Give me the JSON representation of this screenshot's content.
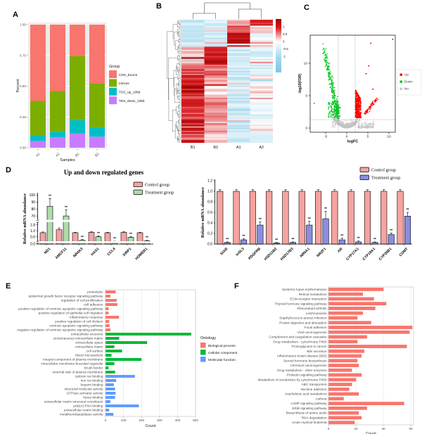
{
  "panels": {
    "A": {
      "label": "A",
      "chart_data": {
        "type": "bar",
        "stacked": true,
        "title": "",
        "xlabel": "Samples",
        "ylabel": "Percent",
        "categories": [
          "A1",
          "A2",
          "B1",
          "B2"
        ],
        "yticks": [
          "1.00",
          "0.75",
          "0.50",
          "0.25",
          "0.00"
        ],
        "legend_title": "Group",
        "series": [
          {
            "name": "CDS_Exons",
            "color": "#F8766D",
            "values": [
              0.62,
              0.54,
              0.255,
              0.48
            ]
          },
          {
            "name": "Introns",
            "color": "#7CAE00",
            "values": [
              0.28,
              0.33,
              0.52,
              0.355
            ]
          },
          {
            "name": "TSS_up_10kb",
            "color": "#00BFC4",
            "values": [
              0.045,
              0.045,
              0.11,
              0.075
            ]
          },
          {
            "name": "TES_down_10kb",
            "color": "#C77CFF",
            "values": [
              0.055,
              0.085,
              0.115,
              0.09
            ]
          }
        ]
      }
    },
    "B": {
      "label": "B",
      "chart_data": {
        "type": "heatmap",
        "columns": [
          "B1",
          "B2",
          "A1",
          "A2"
        ],
        "colorbar_ticks": [
          "1",
          "0.5",
          "0",
          "-0.5",
          "-1"
        ],
        "colors": {
          "high": "#D6191C",
          "veryhigh": "#9E0000",
          "mid": "#FFFFFF",
          "low": "#7EC8E3"
        },
        "row_blocks": [
          {
            "n": 4,
            "means": [
              -0.5,
              -0.45,
              0.55,
              1.15
            ]
          },
          {
            "n": 5,
            "means": [
              -0.5,
              -0.5,
              0.9,
              0.15
            ]
          },
          {
            "n": 5,
            "means": [
              -0.55,
              -0.5,
              1.2,
              -0.2
            ]
          },
          {
            "n": 4,
            "means": [
              -0.5,
              -0.45,
              1.1,
              0.3
            ]
          },
          {
            "n": 6,
            "means": [
              0.3,
              1.1,
              -0.5,
              -0.3
            ]
          },
          {
            "n": 6,
            "means": [
              0.5,
              1.2,
              -0.55,
              -0.25
            ]
          },
          {
            "n": 7,
            "means": [
              0.8,
              0.7,
              -0.5,
              -0.3
            ]
          },
          {
            "n": 6,
            "means": [
              1.15,
              0.4,
              -0.5,
              0.1
            ]
          },
          {
            "n": 7,
            "means": [
              1.2,
              0.1,
              -0.45,
              0.15
            ]
          },
          {
            "n": 8,
            "means": [
              1.0,
              0.55,
              -0.5,
              -0.2
            ]
          },
          {
            "n": 8,
            "means": [
              0.9,
              0.5,
              -0.55,
              -0.1
            ]
          },
          {
            "n": 8,
            "means": [
              1.1,
              0.45,
              -0.5,
              0.05
            ]
          },
          {
            "n": 8,
            "means": [
              0.95,
              0.35,
              -0.5,
              -0.15
            ]
          }
        ],
        "jitter": 0.28,
        "seed": 7
      }
    },
    "C": {
      "label": "C",
      "chart_data": {
        "type": "scatter",
        "xlabel": "logFC",
        "ylabel": "-log10(FDR)",
        "xticks": [
          -5,
          0,
          5,
          10
        ],
        "yticks": [
          0,
          5,
          10
        ],
        "xlim": [
          -8.7,
          11.5
        ],
        "ylim": [
          -0.6,
          14.4
        ],
        "thresholds": {
          "vlines": [
            -2,
            2
          ],
          "hline": 1.3
        },
        "legend": [
          {
            "label": "Up",
            "color": "#FF0000"
          },
          {
            "label": "Down",
            "color": "#00C71E"
          },
          {
            "label": "No",
            "color": "#C4C4C4"
          }
        ],
        "red_outliers": [
          [
            10.9,
            13.7
          ],
          [
            5.7,
            13.1
          ],
          [
            5.2,
            9.6
          ],
          [
            4.6,
            8.4
          ],
          [
            6.2,
            6.0
          ]
        ],
        "green_outliers": [
          [
            -7.7,
            3.8
          ],
          [
            -5.4,
            12.3
          ],
          [
            -5.6,
            11.5
          ],
          [
            -5.0,
            10.4
          ]
        ],
        "seed": 11
      }
    },
    "D": {
      "label": "D",
      "title": "Up and down regulated genes",
      "left": {
        "chart_data": {
          "type": "bar",
          "ylabel": "Relative mRNA abundance",
          "broken_axis": true,
          "categories": [
            "ND1",
            "AMCF11",
            "NR4A3",
            "HAS1",
            "CCL4",
            "XIRP1",
            "HOMER1"
          ],
          "yticks_low": [
            "0.0"
          ],
          "yticks_mid": [
            "0.6",
            "1.2",
            "1.8"
          ],
          "yticks_high": [
            "70",
            "80",
            "90",
            "100"
          ],
          "series": [
            {
              "name": "Control group",
              "color": "#F5A3A0",
              "values": [
                1.0,
                1.3,
                1.0,
                1.05,
                1.0,
                1.05,
                1.0
              ],
              "errors": [
                0.08,
                0.18,
                0.05,
                0.06,
                0.05,
                0.06,
                0.05
              ]
            },
            {
              "name": "Treatment group",
              "color": "#B0DCAB",
              "values": [
                84,
                70,
                0.25,
                0.6,
                0.1,
                0.55,
                0.2
              ],
              "errors": [
                11,
                9,
                0.07,
                0.09,
                0.05,
                0.08,
                0.06
              ],
              "sig": [
                "**",
                "**",
                "**",
                "**",
                "**",
                "**",
                "**"
              ]
            }
          ]
        }
      },
      "right": {
        "chart_data": {
          "type": "bar",
          "ylabel": "Relative mRNA abundance",
          "categories": [
            "StAR",
            "InSL3",
            "PDGFRB",
            "HSD11B2",
            "HSD17B3",
            "NR5A1",
            "NR2F1",
            "AR",
            "CYP17A1",
            "CYP19A1",
            "CYP26B1",
            "COMT"
          ],
          "yticks": [
            "0.0",
            "0.2",
            "0.4",
            "0.6",
            "0.8",
            "1.0",
            "1.2"
          ],
          "series": [
            {
              "name": "Control group",
              "color": "#F5A3A0",
              "values": [
                1,
                1,
                1,
                1,
                1,
                1,
                1,
                1,
                1,
                1,
                1,
                1
              ],
              "errors": [
                0.03,
                0.03,
                0.03,
                0.03,
                0.03,
                0.03,
                0.03,
                0.03,
                0.03,
                0.03,
                0.03,
                0.03
              ]
            },
            {
              "name": "Treatment group",
              "color": "#8C8CE0",
              "values": [
                0.03,
                0.08,
                0.36,
                0.02,
                0.03,
                0.36,
                0.48,
                0.08,
                0.04,
                0.03,
                0.18,
                0.53
              ],
              "errors": [
                0.01,
                0.02,
                0.06,
                0.01,
                0.01,
                0.07,
                0.14,
                0.03,
                0.02,
                0.01,
                0.03,
                0.07
              ],
              "sig": [
                "**",
                "**",
                "**",
                "**",
                "**",
                "**",
                "**",
                "**",
                "**",
                "**",
                "**",
                "**"
              ]
            }
          ]
        }
      }
    },
    "E": {
      "label": "E",
      "chart_data": {
        "type": "bar_h",
        "xlabel": "Count",
        "xticks": [
          0,
          100,
          200,
          300,
          400,
          500
        ],
        "xlim": [
          0,
          500
        ],
        "legend_title": "Ontology",
        "legend": [
          {
            "label": "Biological process",
            "color": "#F8766D"
          },
          {
            "label": "Cellular component",
            "color": "#00BA38"
          },
          {
            "label": "Molecular function",
            "color": "#619CFF"
          }
        ],
        "items": [
          {
            "label": "proteolysis",
            "value": 55,
            "group": 0
          },
          {
            "label": "epidermal growth factor receptor signaling pathway",
            "value": 26,
            "group": 0
          },
          {
            "label": "regulation of cell proliferation",
            "value": 61,
            "group": 0
          },
          {
            "label": "cell adhesion",
            "value": 65,
            "group": 0
          },
          {
            "label": "positive regulation of extrinsic apoptotic signaling pathway",
            "value": 16,
            "group": 0
          },
          {
            "label": "positive regulation of epithelial cell migration",
            "value": 16,
            "group": 0
          },
          {
            "label": "inflammatory response",
            "value": 74,
            "group": 0
          },
          {
            "label": "positive regulation of cell division",
            "value": 19,
            "group": 0
          },
          {
            "label": "extrinsic apoptotic signaling pathway",
            "value": 22,
            "group": 0
          },
          {
            "label": "negative regulation of extrinsic apoptotic signaling pathway",
            "value": 26,
            "group": 0
          },
          {
            "label": "extracellular exosome",
            "value": 475,
            "group": 1
          },
          {
            "label": "proteinaceous extracellular matrix",
            "value": 75,
            "group": 1
          },
          {
            "label": "extracellular space",
            "value": 230,
            "group": 1
          },
          {
            "label": "extracellular matrix",
            "value": 48,
            "group": 1
          },
          {
            "label": "cell surface",
            "value": 91,
            "group": 1
          },
          {
            "label": "blood microparticle",
            "value": 32,
            "group": 1
          },
          {
            "label": "integral component of plasma membrane",
            "value": 199,
            "group": 1
          },
          {
            "label": "intracellular membrane-bounded organelle",
            "value": 48,
            "group": 1
          },
          {
            "label": "brush border",
            "value": 16,
            "group": 1
          },
          {
            "label": "external side of plasma membrane",
            "value": 52,
            "group": 1
          },
          {
            "label": "calcium ion binding",
            "value": 162,
            "group": 2
          },
          {
            "label": "iron ion binding",
            "value": 58,
            "group": 2
          },
          {
            "label": "heparin binding",
            "value": 45,
            "group": 2
          },
          {
            "label": "structural molecule activity",
            "value": 52,
            "group": 2
          },
          {
            "label": "GTPase activator activity",
            "value": 55,
            "group": 2
          },
          {
            "label": "heme binding",
            "value": 52,
            "group": 2
          },
          {
            "label": "extracellular matrix structural constituent",
            "value": 26,
            "group": 2
          },
          {
            "label": "poly(A) RNA binding",
            "value": 184,
            "group": 2
          },
          {
            "label": "extracellular matrix binding",
            "value": 19,
            "group": 2
          },
          {
            "label": "metalloendopeptidase activity",
            "value": 43,
            "group": 2
          }
        ]
      }
    },
    "F": {
      "label": "F",
      "chart_data": {
        "type": "bar_h",
        "xlabel": "Count",
        "xticks": [
          0,
          20,
          40,
          60
        ],
        "xlim": [
          0,
          62
        ],
        "bar_color": "#F8766D",
        "items": [
          {
            "label": "Systemic lupus erythematosus",
            "value": 40
          },
          {
            "label": "Retinol metabolism",
            "value": 25
          },
          {
            "label": "ECM-receptor interaction",
            "value": 33
          },
          {
            "label": "Thyroid hormone signaling pathway",
            "value": 42
          },
          {
            "label": "Rheumatoid arthritis",
            "value": 34
          },
          {
            "label": "Leishmaniasis",
            "value": 25
          },
          {
            "label": "Staphylococcus aureus infection",
            "value": 21
          },
          {
            "label": "Protein digestion and absorption",
            "value": 31
          },
          {
            "label": "Focal adhesion",
            "value": 61
          },
          {
            "label": "Viral carcinogenesis",
            "value": 59
          },
          {
            "label": "Complement and coagulation cascades",
            "value": 28
          },
          {
            "label": "Drug metabolism - cytochrome P450",
            "value": 21
          },
          {
            "label": "Proteoglycans in cancer",
            "value": 57
          },
          {
            "label": "Bile secretion",
            "value": 26
          },
          {
            "label": "Inflammatory bowel disease (IBD)",
            "value": 24
          },
          {
            "label": "Steroid hormone biosynthesis",
            "value": 21
          },
          {
            "label": "Chemical carcinogenesis",
            "value": 22
          },
          {
            "label": "Drug metabolism - other enzymes",
            "value": 17
          },
          {
            "label": "Prolactin signaling pathway",
            "value": 24
          },
          {
            "label": "Metabolism of xenobiotics by cytochrome P450",
            "value": 20
          },
          {
            "label": "ABC transporters",
            "value": 17
          },
          {
            "label": "Nicotine addiction",
            "value": 15
          },
          {
            "label": "Arachidonic acid metabolism",
            "value": 22
          },
          {
            "label": "Asthma",
            "value": 11
          },
          {
            "label": "cAMP signaling pathway",
            "value": 55
          },
          {
            "label": "ErbB signaling pathway",
            "value": 28
          },
          {
            "label": "Biosynthesis of amino acids",
            "value": 22
          },
          {
            "label": "RNA degradation",
            "value": 24
          },
          {
            "label": "Acute myeloid leukemia",
            "value": 19
          }
        ]
      }
    }
  }
}
